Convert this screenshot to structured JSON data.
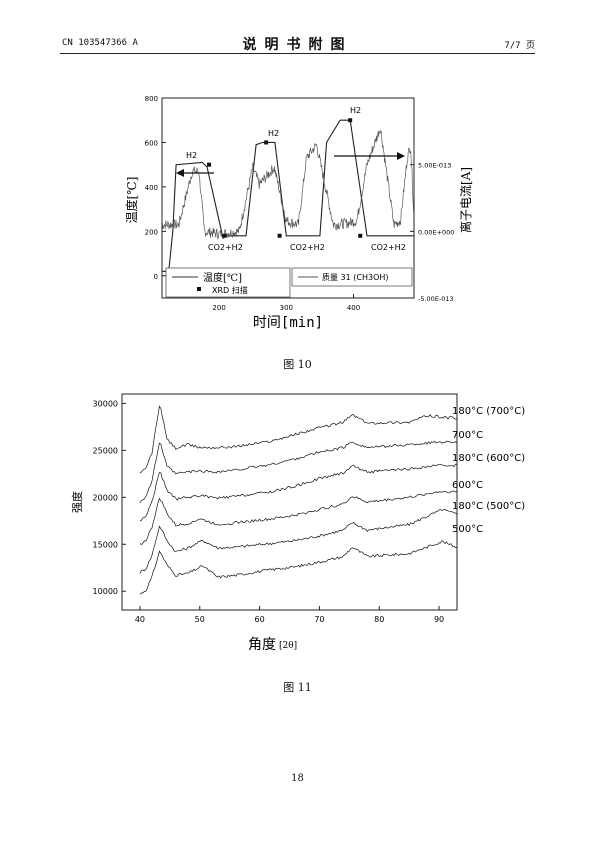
{
  "header": {
    "doc_number": "CN 103547366 A",
    "title": "说明书附图",
    "page_indicator": "7/7 页"
  },
  "fig10": {
    "caption": "图 10",
    "left_axis_label": "温度[℃]",
    "right_axis_label": "离子电流[A]",
    "x_axis_label": "时间[min]",
    "left_ticks": [
      "800",
      "600",
      "400",
      "200",
      "0"
    ],
    "right_ticks": [
      "5.00E-013",
      "0.00E+000",
      "-5.00E-013"
    ],
    "x_ticks": [
      "200",
      "300",
      "400"
    ],
    "annotations": [
      "H2",
      "H2",
      "H2",
      "CO2+H2",
      "CO2+H2",
      "CO2+H2"
    ],
    "legend": {
      "temp": "温度[℃]",
      "xrd": "XRD 扫描",
      "mass": "质量 31 (CH3OH)"
    }
  },
  "fig11": {
    "caption": "图 11",
    "y_axis_label": "强度",
    "x_axis_label": "角度",
    "x_axis_unit": "[2θ]",
    "y_ticks": [
      "30000",
      "25000",
      "20000",
      "15000",
      "10000"
    ],
    "x_ticks": [
      "40",
      "50",
      "60",
      "70",
      "80",
      "90"
    ],
    "series_labels": [
      "180°C (700°C)",
      "700°C",
      "180°C (600°C)",
      "600°C",
      "180°C (500°C)",
      "500°C"
    ]
  },
  "chart_data": [
    {
      "type": "line",
      "title": "",
      "xlabel": "时间[min]",
      "ylabel": "温度[℃]",
      "y2label": "离子电流[A]",
      "xlim": [
        115,
        490
      ],
      "ylim": [
        -100,
        800
      ],
      "y2lim": [
        -5e-13,
        1e-12
      ],
      "series": [
        {
          "name": "温度[℃]",
          "x": [
            115,
            125,
            131,
            136,
            175,
            182,
            205,
            220,
            230,
            240,
            255,
            265,
            283,
            300,
            310,
            315,
            350,
            360,
            380,
            395,
            420,
            435,
            455,
            490
          ],
          "values": [
            20,
            20,
            200,
            500,
            510,
            490,
            180,
            180,
            180,
            180,
            590,
            600,
            600,
            180,
            180,
            180,
            180,
            600,
            700,
            700,
            180,
            180,
            180,
            180
          ]
        },
        {
          "name": "质量 31 (CH3OH)",
          "x": [
            115,
            140,
            160,
            170,
            178,
            200,
            230,
            250,
            260,
            282,
            300,
            318,
            330,
            345,
            370,
            390,
            405,
            420,
            440,
            460,
            470,
            480,
            485,
            490
          ],
          "values": [
            5e-14,
            5e-14,
            4.5e-13,
            4.5e-13,
            0.0,
            -2e-14,
            0.0,
            4.8e-13,
            3.5e-13,
            4.8e-13,
            8e-14,
            5e-14,
            5.5e-13,
            6.5e-13,
            5e-14,
            6e-14,
            8e-14,
            5e-13,
            7.8e-13,
            5e-14,
            8e-14,
            5.5e-13,
            6.5e-13,
            1e-13
          ]
        }
      ],
      "markers": {
        "name": "XRD 扫描",
        "x": [
          185,
          208,
          270,
          290,
          395,
          410
        ],
        "values": [
          500,
          180,
          600,
          180,
          700,
          180
        ]
      }
    },
    {
      "type": "line",
      "title": "",
      "xlabel": "角度",
      "ylabel": "强度",
      "xlim": [
        37,
        93
      ],
      "ylim": [
        8000,
        31000
      ],
      "series": [
        {
          "name": "500°C",
          "x": [
            40,
            41,
            42,
            43.3,
            44.5,
            46,
            48,
            50.5,
            53,
            56,
            62,
            66,
            70,
            74,
            75.5,
            78,
            85,
            90.5,
            93
          ],
          "values": [
            9700,
            10100,
            11500,
            14300,
            12800,
            11700,
            11900,
            12700,
            11500,
            11700,
            12300,
            12600,
            13100,
            13700,
            14700,
            13700,
            14000,
            15300,
            14700
          ]
        },
        {
          "name": "180°C (500°C)",
          "x": [
            40,
            41,
            42,
            43.3,
            44.5,
            46,
            48,
            50.5,
            53,
            56,
            62,
            66,
            70,
            74,
            75.5,
            78,
            85,
            90.5,
            93
          ],
          "values": [
            12000,
            12400,
            13800,
            17000,
            15400,
            14200,
            14600,
            15400,
            14600,
            14700,
            15100,
            15400,
            15900,
            16500,
            17300,
            16500,
            17100,
            18700,
            18200
          ]
        },
        {
          "name": "600°C",
          "x": [
            40,
            41,
            42,
            43.3,
            44.5,
            46,
            48,
            50,
            53,
            56,
            62,
            66,
            70,
            74,
            75.5,
            78,
            85,
            90,
            93
          ],
          "values": [
            15000,
            15400,
            16800,
            20000,
            18300,
            17000,
            17200,
            17700,
            17100,
            17300,
            17700,
            18100,
            18700,
            19300,
            20100,
            19500,
            20000,
            20600,
            20600
          ]
        },
        {
          "name": "180°C (600°C)",
          "x": [
            40,
            41,
            42,
            43.3,
            44.5,
            46,
            48,
            50,
            53,
            56,
            62,
            66,
            70,
            74,
            75.5,
            78,
            85,
            90,
            93
          ],
          "values": [
            17500,
            18000,
            19500,
            22800,
            20800,
            19800,
            20000,
            20200,
            19900,
            20100,
            20600,
            21200,
            22000,
            22600,
            23400,
            22700,
            23000,
            23400,
            23400
          ]
        },
        {
          "name": "700°C",
          "x": [
            40,
            41,
            42,
            43.3,
            44.5,
            46,
            48,
            50,
            53,
            56,
            62,
            66,
            70,
            74,
            75.5,
            78,
            85,
            90,
            93
          ],
          "values": [
            19500,
            20100,
            21700,
            26000,
            23300,
            22500,
            22700,
            22800,
            22700,
            22900,
            23500,
            24100,
            24800,
            25300,
            25900,
            25300,
            25600,
            25900,
            25900
          ]
        },
        {
          "name": "180°C (700°C)",
          "x": [
            40,
            41,
            42,
            43.3,
            44.5,
            46,
            48,
            50,
            53,
            56,
            62,
            66,
            70,
            74,
            75.5,
            78,
            85,
            88,
            93
          ],
          "values": [
            22500,
            23100,
            24700,
            30000,
            26200,
            25200,
            25600,
            25300,
            25300,
            25400,
            26000,
            26700,
            27400,
            28000,
            28800,
            27900,
            28000,
            28700,
            28400
          ]
        }
      ]
    }
  ]
}
